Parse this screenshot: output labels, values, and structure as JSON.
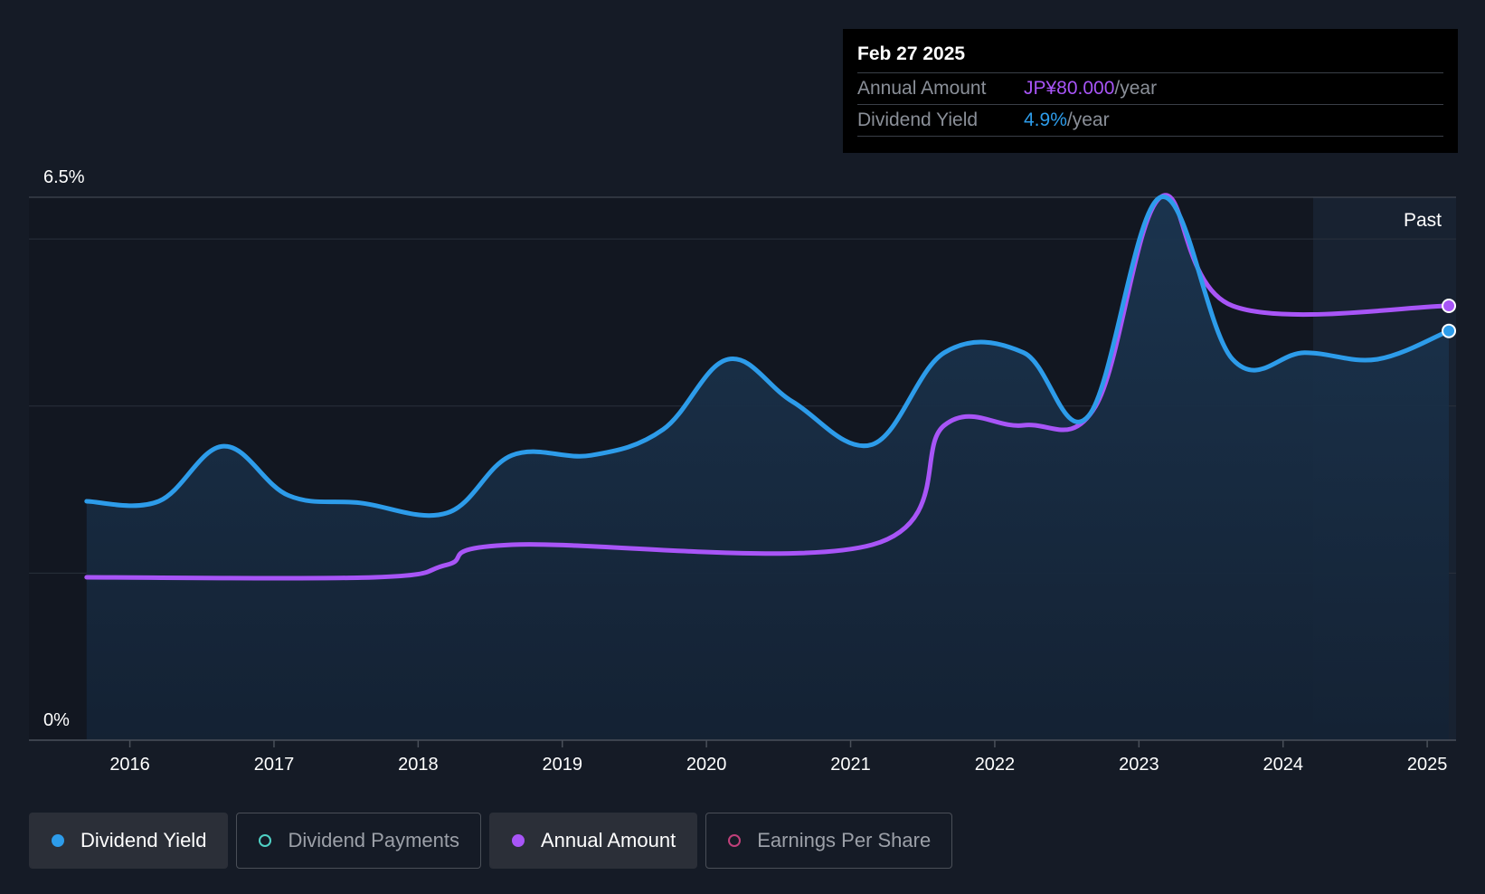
{
  "tooltip": {
    "date": "Feb 27 2025",
    "annual_amount_label": "Annual Amount",
    "annual_amount_value": "JP¥80.000",
    "annual_amount_unit": "/year",
    "dividend_yield_label": "Dividend Yield",
    "dividend_yield_value": "4.9%",
    "dividend_yield_unit": "/year"
  },
  "legend": [
    {
      "label": "Dividend Yield",
      "active": true
    },
    {
      "label": "Dividend Payments",
      "active": false
    },
    {
      "label": "Annual Amount",
      "active": true
    },
    {
      "label": "Earnings Per Share",
      "active": false
    }
  ],
  "chart_data": {
    "type": "line",
    "ymax_label": "6.5%",
    "ymin_label": "0%",
    "past_label": "Past",
    "ylim": [
      0,
      6.5
    ],
    "xlim": [
      2015.3,
      2025.2
    ],
    "x_ticks": [
      "2016",
      "2017",
      "2018",
      "2019",
      "2020",
      "2021",
      "2022",
      "2023",
      "2024",
      "2025"
    ],
    "x_tick_values": [
      2016,
      2017,
      2018,
      2019,
      2020,
      2021,
      2022,
      2023,
      2024,
      2025
    ],
    "colors": {
      "yield": "#2d9cea",
      "amount": "#a855f7",
      "grid": "#2a313c"
    },
    "series": [
      {
        "name": "Dividend Yield",
        "points": [
          [
            2015.7,
            2.86
          ],
          [
            2016.2,
            2.86
          ],
          [
            2016.65,
            3.52
          ],
          [
            2017.1,
            2.93
          ],
          [
            2017.6,
            2.84
          ],
          [
            2018.2,
            2.72
          ],
          [
            2018.65,
            3.41
          ],
          [
            2019.2,
            3.41
          ],
          [
            2019.7,
            3.72
          ],
          [
            2020.15,
            4.56
          ],
          [
            2020.6,
            4.05
          ],
          [
            2021.15,
            3.54
          ],
          [
            2021.65,
            4.64
          ],
          [
            2022.2,
            4.64
          ],
          [
            2022.65,
            3.88
          ],
          [
            2023.15,
            6.5
          ],
          [
            2023.65,
            4.56
          ],
          [
            2024.15,
            4.64
          ],
          [
            2024.65,
            4.56
          ],
          [
            2025.15,
            4.9
          ]
        ]
      },
      {
        "name": "Annual Amount",
        "points": [
          [
            2015.7,
            1.95
          ],
          [
            2017.7,
            1.95
          ],
          [
            2018.2,
            2.1
          ],
          [
            2018.65,
            2.34
          ],
          [
            2021.15,
            2.34
          ],
          [
            2021.65,
            3.77
          ],
          [
            2022.2,
            3.77
          ],
          [
            2022.7,
            4.0
          ],
          [
            2023.15,
            6.5
          ],
          [
            2023.65,
            5.2
          ],
          [
            2025.15,
            5.2
          ]
        ]
      }
    ]
  }
}
